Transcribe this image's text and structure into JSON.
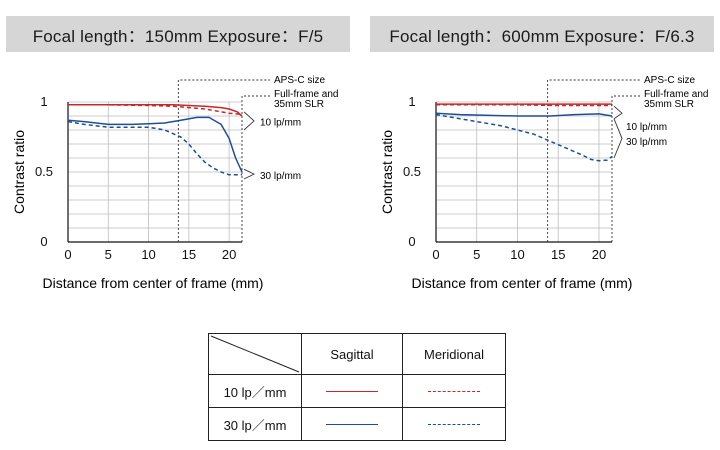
{
  "panels": [
    {
      "header": "Focal length：150mm  Exposure：F/5"
    },
    {
      "header": "Focal length：600mm  Exposure：F/6.3"
    }
  ],
  "colors": {
    "red": "#c8262b",
    "blue": "#1f4e96",
    "grid": "#bdbdbd",
    "header_bg": "#d6d6d6"
  },
  "chart_data": [
    {
      "type": "line",
      "title": "Focal length：150mm  Exposure：F/5",
      "xlabel": "Distance from center of frame (mm)",
      "ylabel": "Contrast ratio",
      "xlim": [
        0,
        21.6
      ],
      "ylim": [
        0,
        1
      ],
      "x_ticks": [
        "0",
        "5",
        "10",
        "15",
        "20"
      ],
      "y_ticks": [
        "0",
        "0.5",
        "1"
      ],
      "grid": true,
      "annotations": {
        "apsc": "APS-C size",
        "fullframe_line1": "Full-frame and",
        "fullframe_line2": "35mm SLR",
        "lp10": "10 lp/mm",
        "lp30": "30 lp/mm"
      },
      "apsc_x": 13.7,
      "series": [
        {
          "key": "10lp_sag",
          "x": [
            0,
            5,
            10,
            13,
            15,
            17,
            19,
            20,
            21,
            21.6
          ],
          "y": [
            0.98,
            0.98,
            0.98,
            0.98,
            0.975,
            0.97,
            0.96,
            0.95,
            0.93,
            0.9
          ]
        },
        {
          "key": "10lp_mer",
          "x": [
            0,
            5,
            10,
            13,
            15,
            17,
            19,
            20,
            21,
            21.6
          ],
          "y": [
            0.98,
            0.98,
            0.975,
            0.97,
            0.96,
            0.95,
            0.93,
            0.92,
            0.915,
            0.91
          ]
        },
        {
          "key": "30lp_sag",
          "x": [
            0,
            2,
            5,
            8,
            10,
            12,
            14,
            16,
            17.5,
            19,
            20,
            20.8,
            21.6
          ],
          "y": [
            0.87,
            0.86,
            0.84,
            0.84,
            0.845,
            0.85,
            0.87,
            0.89,
            0.89,
            0.84,
            0.74,
            0.6,
            0.5
          ]
        },
        {
          "key": "30lp_mer",
          "x": [
            0,
            2,
            5,
            8,
            10,
            12,
            14,
            15,
            16,
            17,
            18,
            19,
            20,
            21,
            21.6
          ],
          "y": [
            0.86,
            0.84,
            0.82,
            0.82,
            0.82,
            0.8,
            0.75,
            0.7,
            0.63,
            0.57,
            0.53,
            0.5,
            0.48,
            0.48,
            0.48
          ]
        }
      ]
    },
    {
      "type": "line",
      "title": "Focal length：600mm  Exposure：F/6.3",
      "xlabel": "Distance from center of frame (mm)",
      "ylabel": "Contrast ratio",
      "xlim": [
        0,
        21.6
      ],
      "ylim": [
        0,
        1
      ],
      "x_ticks": [
        "0",
        "5",
        "10",
        "15",
        "20"
      ],
      "y_ticks": [
        "0",
        "0.5",
        "1"
      ],
      "grid": true,
      "annotations": {
        "apsc": "APS-C size",
        "fullframe_line1": "Full-frame and",
        "fullframe_line2": "35mm SLR",
        "lp10": "10 lp/mm",
        "lp30": "30 lp/mm"
      },
      "apsc_x": 13.7,
      "series": [
        {
          "key": "10lp_sag",
          "x": [
            0,
            5,
            10,
            15,
            20,
            21.6
          ],
          "y": [
            0.985,
            0.985,
            0.985,
            0.985,
            0.985,
            0.985
          ]
        },
        {
          "key": "10lp_mer",
          "x": [
            0,
            5,
            10,
            15,
            20,
            21.6
          ],
          "y": [
            0.98,
            0.98,
            0.98,
            0.975,
            0.975,
            0.975
          ]
        },
        {
          "key": "30lp_sag",
          "x": [
            0,
            3,
            6,
            10,
            14,
            17,
            20,
            21.6
          ],
          "y": [
            0.92,
            0.91,
            0.905,
            0.9,
            0.9,
            0.91,
            0.915,
            0.9
          ]
        },
        {
          "key": "30lp_mer",
          "x": [
            0,
            2,
            4,
            6,
            8,
            10,
            12,
            14,
            16,
            18,
            19,
            20,
            21,
            21.6
          ],
          "y": [
            0.91,
            0.89,
            0.87,
            0.85,
            0.83,
            0.8,
            0.77,
            0.72,
            0.67,
            0.62,
            0.59,
            0.58,
            0.585,
            0.61
          ]
        }
      ]
    }
  ],
  "legend": {
    "col_sagittal": "Sagittal",
    "col_meridional": "Meridional",
    "row_10": "10 lp／mm",
    "row_30": "30 lp／mm"
  }
}
